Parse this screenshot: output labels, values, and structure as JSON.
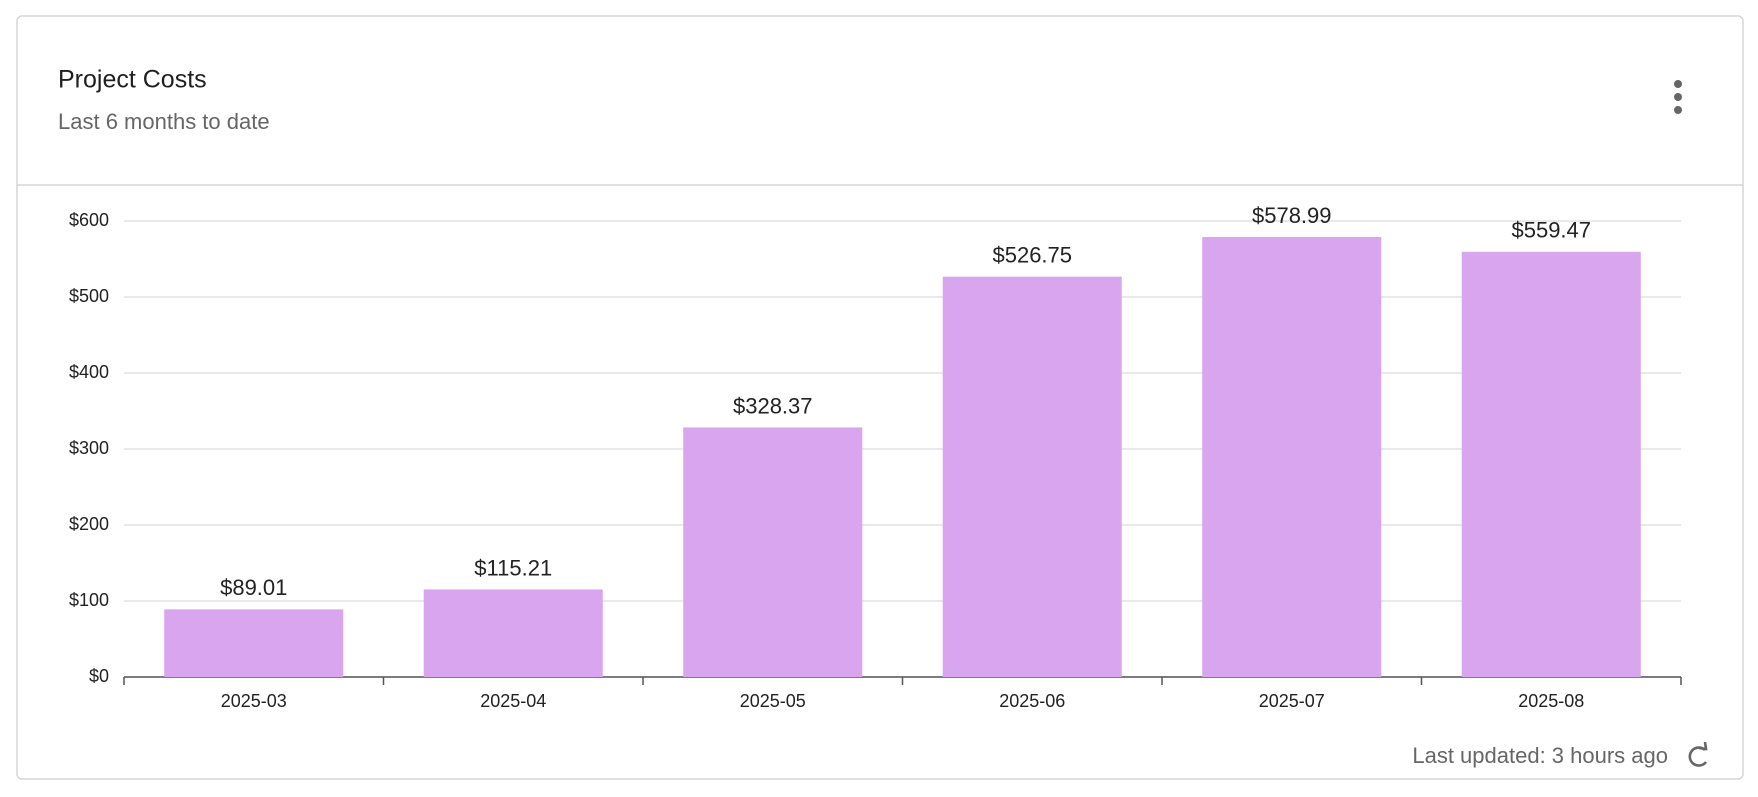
{
  "chart_data": {
    "type": "bar",
    "title": "Project Costs",
    "subtitle": "Last 6 months to date",
    "categories": [
      "2025-03",
      "2025-04",
      "2025-05",
      "2025-06",
      "2025-07",
      "2025-08"
    ],
    "values": [
      89.01,
      115.21,
      328.37,
      526.75,
      578.99,
      559.47
    ],
    "value_labels": [
      "$89.01",
      "$115.21",
      "$328.37",
      "$526.75",
      "$578.99",
      "$559.47"
    ],
    "color": "#d9a5ee",
    "ylim": [
      0,
      600
    ],
    "yticks": [
      {
        "value": 0,
        "label": "$0"
      },
      {
        "value": 100,
        "label": "$100"
      },
      {
        "value": 200,
        "label": "$200"
      },
      {
        "value": 300,
        "label": "$300"
      },
      {
        "value": 400,
        "label": "$400"
      },
      {
        "value": 500,
        "label": "$500"
      },
      {
        "value": 600,
        "label": "$600"
      }
    ],
    "grid": true
  },
  "footer": {
    "status": "Last updated: 3 hours ago"
  }
}
